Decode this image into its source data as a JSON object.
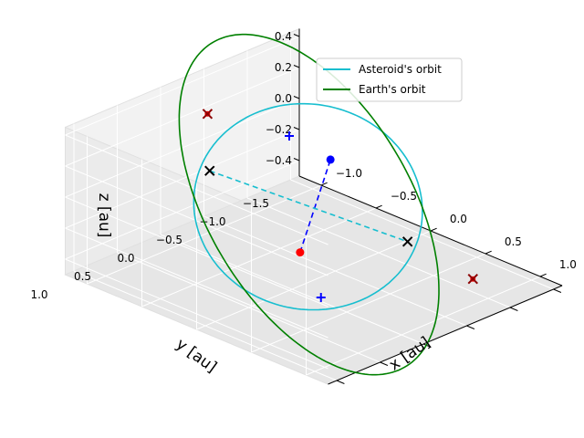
{
  "chart_data": {
    "type": "line",
    "projection": "3d",
    "title": "",
    "axes": {
      "x": {
        "label": "x [au]",
        "lim": [
          -1.2,
          1.2
        ],
        "ticks": [
          -1.0,
          -0.5,
          0.0,
          0.5,
          1.0
        ],
        "tick_labels": [
          "−1.0",
          "−0.5",
          "0.0",
          "0.5",
          "1.0"
        ]
      },
      "y": {
        "label": "y [au]",
        "lim": [
          -1.6,
          1.1
        ],
        "ticks": [
          -1.5,
          -1.0,
          -0.5,
          0.0,
          0.5,
          1.0
        ],
        "tick_labels": [
          "−1.5",
          "−1.0",
          "−0.5",
          "0.0",
          "0.5",
          "1.0"
        ]
      },
      "z": {
        "label": "z [au]",
        "lim": [
          -0.5,
          0.45
        ],
        "ticks": [
          -0.4,
          -0.2,
          0.0,
          0.2,
          0.4
        ],
        "tick_labels": [
          "−0.4",
          "−0.2",
          "0.0",
          "0.2",
          "0.4"
        ]
      }
    },
    "grid": true,
    "legend": {
      "position": "top-right"
    },
    "series": [
      {
        "name": "Asteroid's orbit",
        "kind": "orbit",
        "color": "#17becf",
        "center": [
          0.02,
          -0.16,
          0.0
        ],
        "u": [
          0.78,
          0.82,
          -0.24
        ],
        "v": [
          -0.6,
          0.55,
          -0.1
        ]
      },
      {
        "name": "Earth's orbit",
        "kind": "orbit",
        "color": "#008000",
        "center": [
          -0.05,
          -0.26,
          -0.03
        ],
        "u": [
          0.96,
          1.11,
          -0.44
        ],
        "v": [
          -0.74,
          0.56,
          0.4
        ]
      }
    ],
    "segments": [
      {
        "from": [
          0.43,
          0.45,
          -0.03
        ],
        "to": [
          -0.29,
          -0.81,
          0.06
        ],
        "color": "#0000ff",
        "style": "dashed"
      },
      {
        "from": [
          -0.57,
          0.23,
          0.15
        ],
        "to": [
          0.62,
          -0.55,
          -0.14
        ],
        "color": "#17becf",
        "style": "dashed"
      }
    ],
    "markers": [
      {
        "at": [
          0.43,
          0.45,
          -0.03
        ],
        "shape": "dot",
        "color": "#ff0000"
      },
      {
        "at": [
          -0.29,
          -0.81,
          0.06
        ],
        "shape": "dot",
        "color": "#0000ff"
      },
      {
        "at": [
          -0.57,
          0.23,
          0.15
        ],
        "shape": "x",
        "color": "#000000"
      },
      {
        "at": [
          0.62,
          -0.55,
          -0.14
        ],
        "shape": "x",
        "color": "#000000"
      },
      {
        "at": [
          -0.5,
          -0.6,
          0.2
        ],
        "shape": "plus",
        "color": "#0000ff"
      },
      {
        "at": [
          0.51,
          0.31,
          -0.33
        ],
        "shape": "plus",
        "color": "#0000ff"
      },
      {
        "at": [
          -0.93,
          -0.2,
          0.31
        ],
        "shape": "x",
        "color": "#8b0000"
      },
      {
        "at": [
          1.09,
          -0.71,
          -0.28
        ],
        "shape": "x",
        "color": "#8b0000"
      }
    ]
  }
}
